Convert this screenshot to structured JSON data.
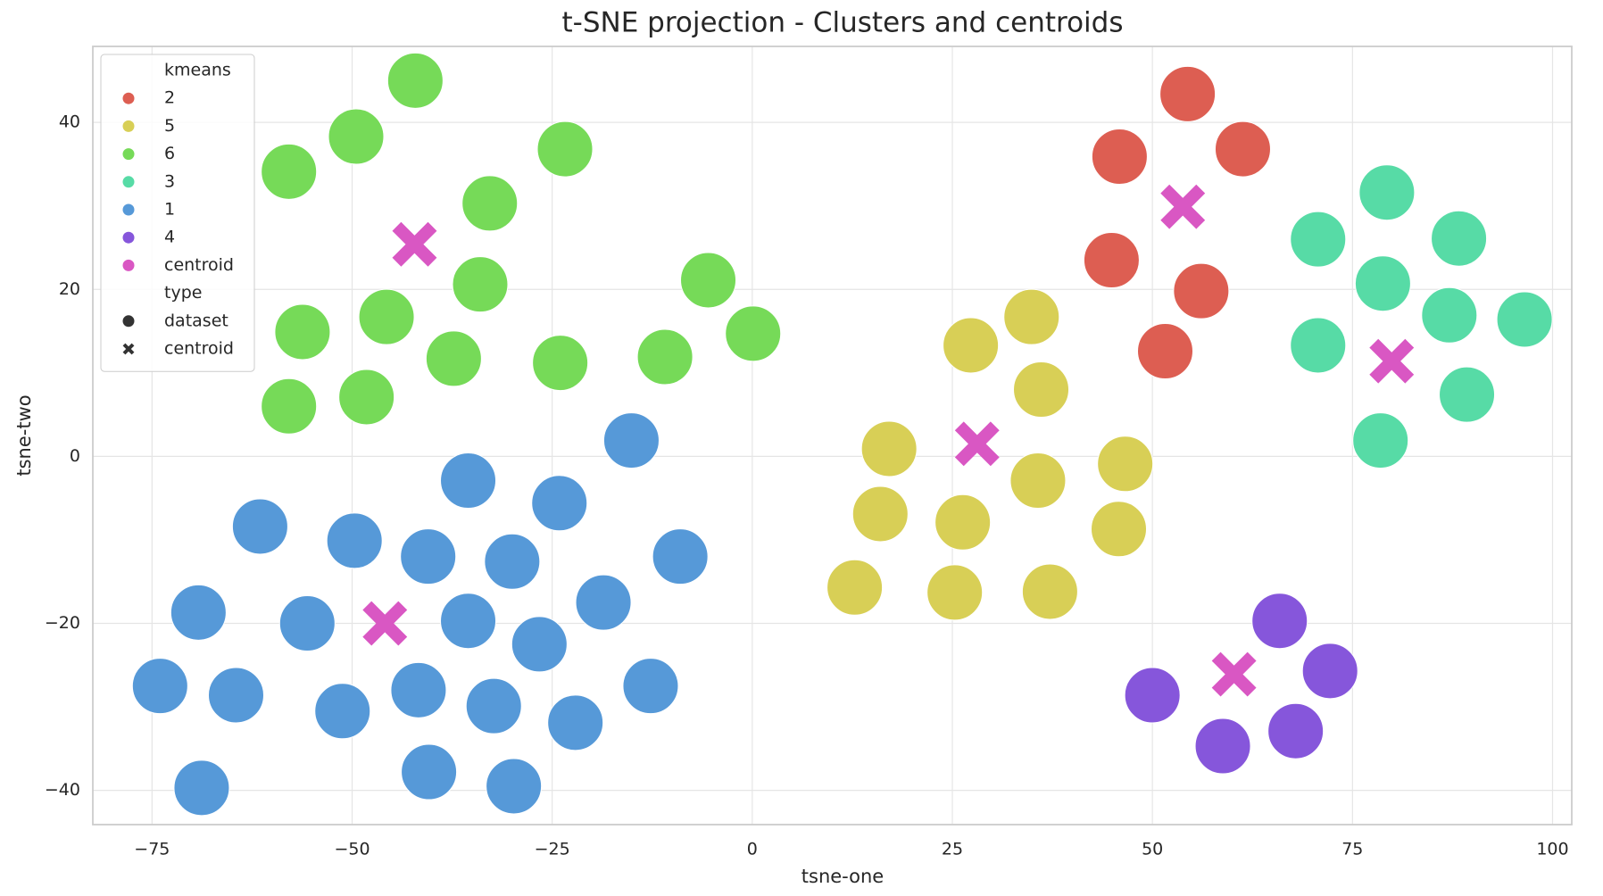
{
  "chart_data": {
    "type": "scatter",
    "title": "t-SNE projection - Clusters and centroids",
    "x_label": "tsne-one",
    "y_label": "tsne-two",
    "xlim": [
      -82.4,
      102.4
    ],
    "ylim": [
      -44.1,
      49.1
    ],
    "xticks": [
      {
        "value": -75,
        "label": "−75"
      },
      {
        "value": -50,
        "label": "−50"
      },
      {
        "value": -25,
        "label": "−25"
      },
      0,
      25,
      50,
      75,
      100
    ],
    "yticks": [
      {
        "value": -40,
        "label": "−40"
      },
      {
        "value": -20,
        "label": "−20"
      },
      0,
      20,
      40
    ],
    "grid": true,
    "legend": {
      "position": "upper left",
      "hue_title": "kmeans",
      "style_title": "type",
      "styles": [
        {
          "label": "dataset",
          "marker": "circle"
        },
        {
          "label": "centroid",
          "marker": "x"
        }
      ]
    },
    "series": [
      {
        "name": "2",
        "color": "#dd5e52",
        "marker": "circle",
        "x": [
          54.4,
          45.9,
          61.3,
          44.9,
          56.1,
          51.6
        ],
        "y": [
          43.4,
          35.9,
          36.8,
          23.5,
          19.8,
          12.6
        ]
      },
      {
        "name": "5",
        "color": "#d8cf56",
        "marker": "circle",
        "x": [
          34.9,
          27.3,
          36.1,
          17.1,
          46.6,
          35.7,
          16.0,
          26.3,
          45.8,
          12.8,
          25.3,
          37.2
        ],
        "y": [
          16.7,
          13.3,
          8.0,
          0.9,
          -0.9,
          -2.9,
          -6.9,
          -7.9,
          -8.7,
          -15.7,
          -16.3,
          -16.2
        ]
      },
      {
        "name": "6",
        "color": "#76da58",
        "marker": "circle",
        "x": [
          -42.1,
          -49.5,
          -23.4,
          -57.9,
          -32.8,
          -34.0,
          -5.5,
          -45.7,
          -56.2,
          0.1,
          -37.3,
          -24.0,
          -10.9,
          -48.2,
          -57.9
        ],
        "y": [
          45.0,
          38.3,
          36.8,
          34.1,
          30.3,
          20.6,
          21.1,
          16.7,
          14.9,
          14.7,
          11.7,
          11.2,
          11.9,
          7.1,
          6.0
        ]
      },
      {
        "name": "3",
        "color": "#57dba6",
        "marker": "circle",
        "x": [
          79.3,
          70.7,
          88.3,
          78.8,
          87.1,
          96.5,
          70.7,
          89.3,
          78.5
        ],
        "y": [
          31.6,
          26.0,
          26.1,
          20.7,
          16.9,
          16.4,
          13.3,
          7.4,
          1.9
        ]
      },
      {
        "name": "1",
        "color": "#5699d8",
        "marker": "circle",
        "x": [
          -15.1,
          -35.5,
          -24.1,
          -61.5,
          -49.7,
          -40.5,
          -30.0,
          -9.0,
          -18.6,
          -69.2,
          -55.6,
          -35.5,
          -26.6,
          -74.0,
          -64.5,
          -41.7,
          -12.7,
          -32.3,
          -51.2,
          -22.1,
          -40.4,
          -29.8,
          -68.8
        ],
        "y": [
          1.9,
          -2.9,
          -5.6,
          -8.4,
          -10.1,
          -12.0,
          -12.6,
          -12.0,
          -17.5,
          -18.7,
          -20.0,
          -19.7,
          -22.5,
          -27.5,
          -28.6,
          -28.0,
          -27.5,
          -29.9,
          -30.5,
          -31.9,
          -37.8,
          -39.5,
          -39.7
        ]
      },
      {
        "name": "4",
        "color": "#8656db",
        "marker": "circle",
        "x": [
          65.9,
          72.2,
          50.0,
          67.9,
          58.8
        ],
        "y": [
          -19.7,
          -25.7,
          -28.6,
          -32.9,
          -34.7
        ]
      },
      {
        "name": "centroid",
        "color": "#d957c3",
        "marker": "x",
        "x": [
          53.8,
          28.1,
          -42.2,
          79.9,
          60.2,
          -45.9
        ],
        "y": [
          29.9,
          1.5,
          25.4,
          11.4,
          -26.1,
          -20.0
        ]
      }
    ]
  }
}
